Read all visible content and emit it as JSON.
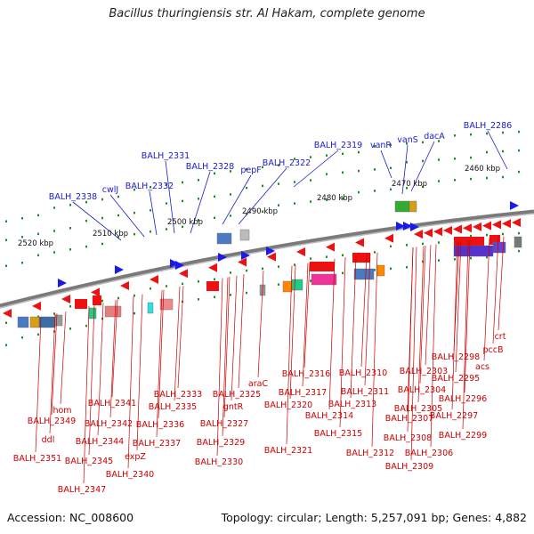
{
  "title": "Bacillus thuringiensis str. Al Hakam, complete genome",
  "footer": {
    "accession": "Accession: NC_008600",
    "summary": "Topology: circular; Length: 5,257,091 bp; Genes: 4,882"
  },
  "colors": {
    "top_label": "#1a1acc",
    "bottom_label": "#cc0000",
    "backbone": "#7a7a7a",
    "tick": "#228b22",
    "forward_arrow": "#1a1aee",
    "reverse_arrow": "#ee1111"
  },
  "scale_labels": [
    "2460 kbp",
    "2470 kbp",
    "2480 kbp",
    "2490 kbp",
    "2500 kbp",
    "2510 kbp",
    "2520 kbp"
  ],
  "top_labels": [
    "BALH_2286",
    "dacA",
    "vanS",
    "vanR",
    "BALH_2319",
    "BALH_2322",
    "pepF",
    "BALH_2328",
    "BALH_2331",
    "BALH_2332",
    "cwlJ",
    "BALH_2338"
  ],
  "bottom_labels": [
    "crt",
    "pccB",
    "acs",
    "BALH_2298",
    "BALH_2295",
    "BALH_2296",
    "BALH_2297",
    "BALH_2299",
    "BALH_2303",
    "BALH_2304",
    "BALH_2305",
    "BALH_2306",
    "BALH_2307",
    "BALH_2308",
    "BALH_2309",
    "BALH_2310",
    "BALH_2311",
    "BALH_2312",
    "BALH_2313",
    "BALH_2314",
    "BALH_2315",
    "BALH_2316",
    "BALH_2317",
    "BALH_2320",
    "BALH_2321",
    "araC",
    "BALH_2325",
    "gntR",
    "BALH_2327",
    "BALH_2329",
    "BALH_2330",
    "BALH_2333",
    "BALH_2335",
    "BALH_2336",
    "BALH_2337",
    "expZ",
    "BALH_2340",
    "BALH_2341",
    "BALH_2342",
    "BALH_2344",
    "BALH_2345",
    "BALH_2347",
    "hom",
    "BALH_2349",
    "ddl",
    "BALH_2351"
  ]
}
